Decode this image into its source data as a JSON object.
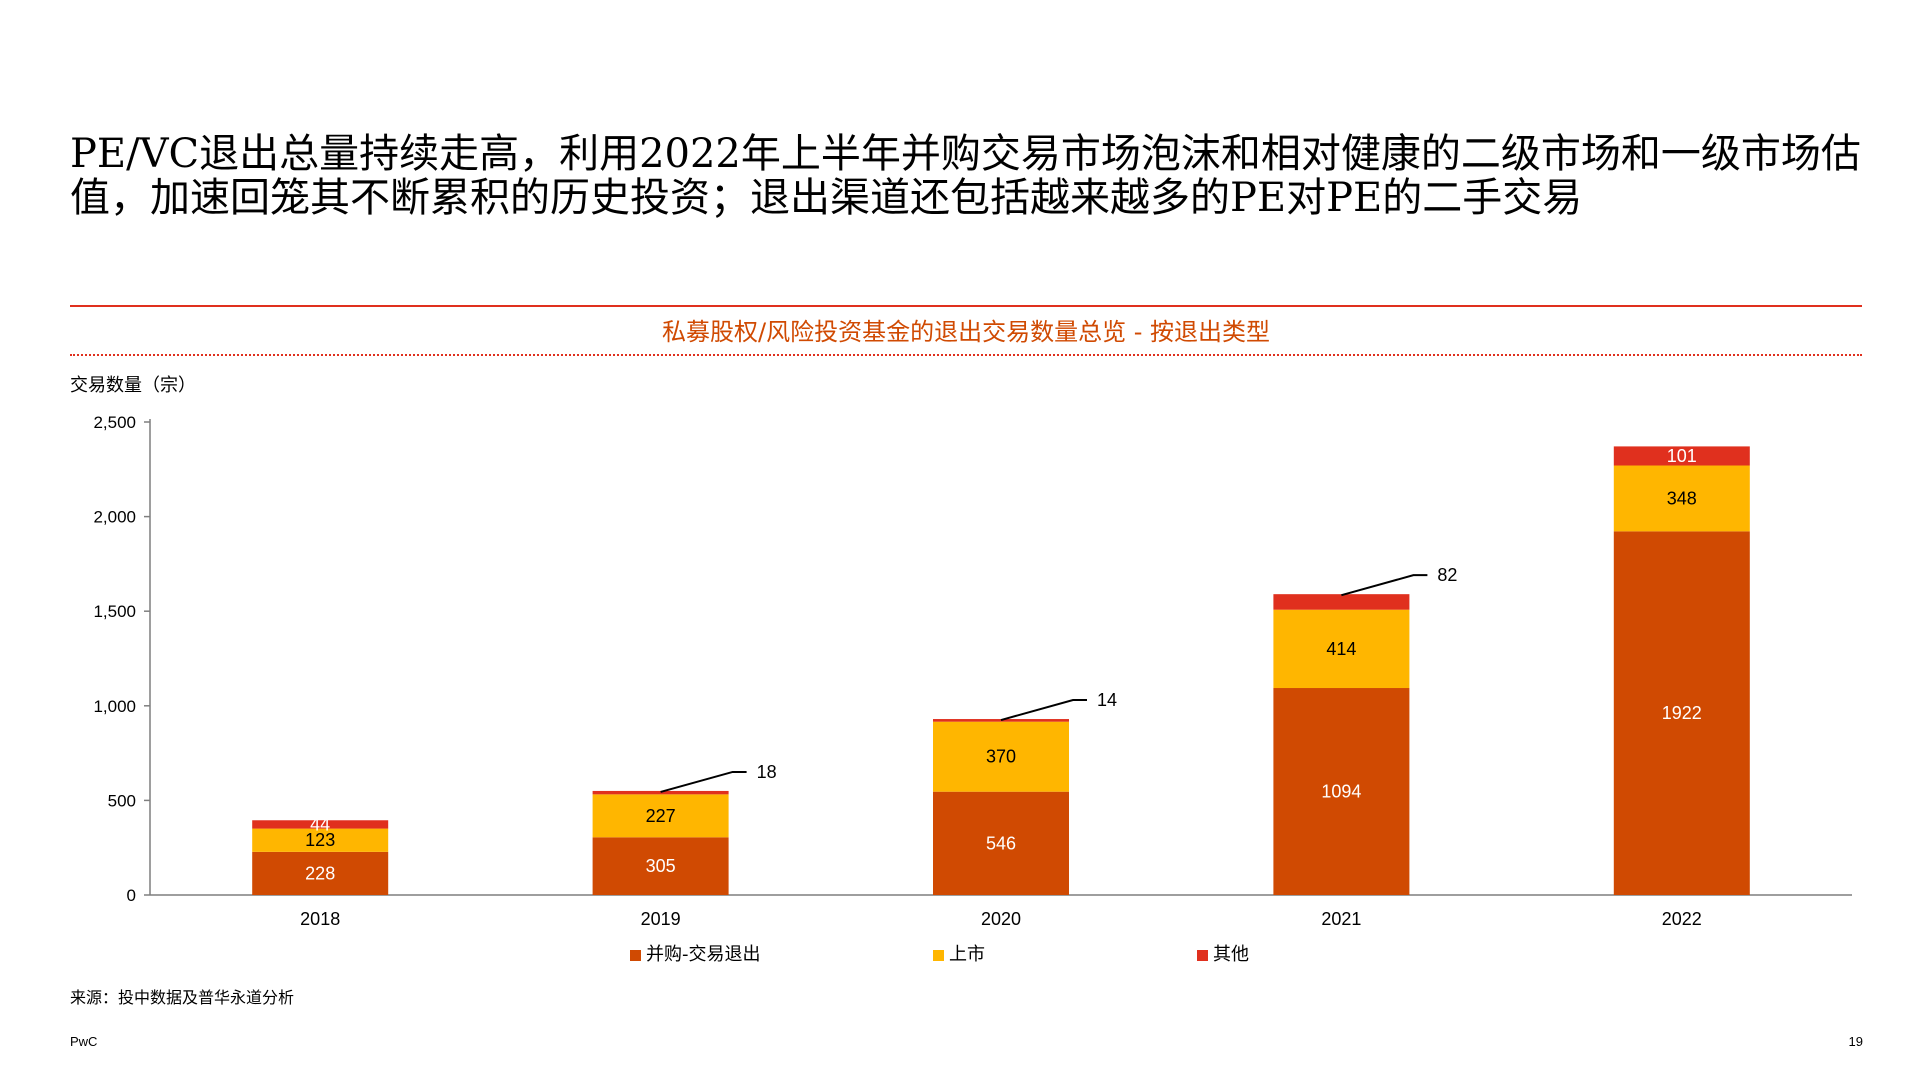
{
  "slide": {
    "headline": "PE/VC退出总量持续走高，利用2022年上半年并购交易市场泡沫和相对健康的二级市场和一级市场估值，加速回笼其不断累积的历史投资；退出渠道还包括越来越多的PE对PE的二手交易",
    "source": "来源：投中数据及普华永道分析",
    "brand": "PwC",
    "page_number": "19"
  },
  "colors": {
    "accent": "#D04A02",
    "rule": "#E0301E",
    "series_ma": "#D04A02",
    "series_ipo": "#FFB600",
    "series_other": "#E0301E"
  },
  "chart_data": {
    "type": "bar",
    "stacked": true,
    "title": "私募股权/风险投资基金的退出交易数量总览 - 按退出类型",
    "ylabel": "交易数量（宗）",
    "xlabel": "",
    "categories": [
      "2018",
      "2019",
      "2020",
      "2021",
      "2022"
    ],
    "ylim": [
      0,
      2500
    ],
    "yticks": [
      0,
      500,
      1000,
      1500,
      2000,
      2500
    ],
    "ytick_labels": [
      "0",
      "500",
      "1,000",
      "1,500",
      "2,000",
      "2,500"
    ],
    "grid": false,
    "legend_position": "bottom",
    "series": [
      {
        "name": "并购-交易退出",
        "color": "#D04A02",
        "label_color": "#FFFFFF",
        "values": [
          228,
          305,
          546,
          1094,
          1922
        ]
      },
      {
        "name": "上市",
        "color": "#FFB600",
        "label_color": "#000000",
        "values": [
          123,
          227,
          370,
          414,
          348
        ]
      },
      {
        "name": "其他",
        "color": "#E0301E",
        "label_color": "#FFFFFF",
        "values": [
          44,
          18,
          14,
          82,
          101
        ],
        "callout": [
          false,
          true,
          true,
          true,
          false
        ]
      }
    ]
  }
}
